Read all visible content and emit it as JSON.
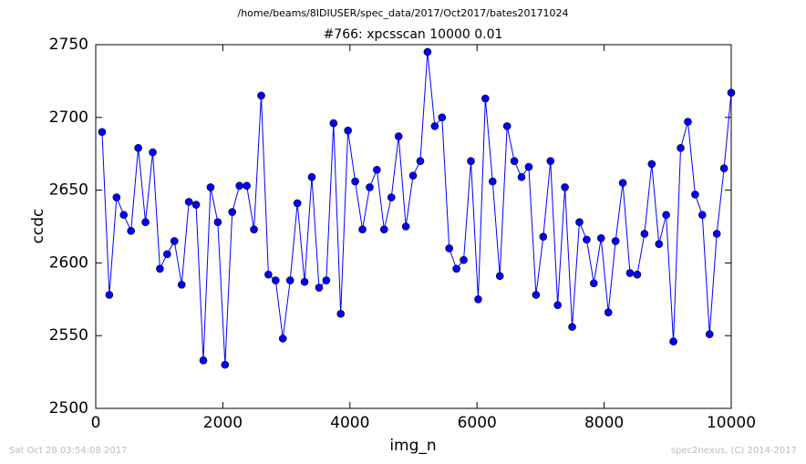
{
  "chart_data": {
    "type": "line",
    "suptitle": "/home/beams/8IDIUSER/spec_data/2017/Oct2017/bates20171024",
    "title": "#766: xpcsscan 10000 0.01",
    "xlabel": "img_n",
    "ylabel": "ccdc",
    "annotations": [
      "Sat Oct 28 03:54:08 2017",
      "spec2nexus, (C) 2014-2017"
    ],
    "color": "#0000ff",
    "marker": "circle",
    "x": [
      100,
      214,
      328,
      441,
      555,
      669,
      783,
      897,
      1010,
      1124,
      1238,
      1352,
      1466,
      1579,
      1693,
      1807,
      1921,
      2035,
      2148,
      2262,
      2376,
      2490,
      2604,
      2717,
      2831,
      2945,
      3059,
      3173,
      3286,
      3400,
      3514,
      3628,
      3742,
      3855,
      3969,
      4083,
      4197,
      4311,
      4424,
      4538,
      4652,
      4766,
      4880,
      4993,
      5107,
      5221,
      5335,
      5449,
      5562,
      5676,
      5790,
      5904,
      6018,
      6131,
      6245,
      6359,
      6473,
      6587,
      6700,
      6814,
      6928,
      7042,
      7156,
      7269,
      7383,
      7497,
      7611,
      7725,
      7838,
      7952,
      8066,
      8180,
      8294,
      8407,
      8521,
      8635,
      8749,
      8863,
      8976,
      9090,
      9204,
      9318,
      9432,
      9545,
      9659,
      9773,
      9887,
      10000
    ],
    "values": [
      2690,
      2578,
      2645,
      2633,
      2622,
      2679,
      2628,
      2676,
      2596,
      2606,
      2615,
      2585,
      2642,
      2640,
      2533,
      2652,
      2628,
      2530,
      2635,
      2653,
      2653,
      2623,
      2715,
      2592,
      2588,
      2548,
      2588,
      2641,
      2587,
      2659,
      2583,
      2588,
      2696,
      2565,
      2691,
      2656,
      2623,
      2652,
      2664,
      2623,
      2645,
      2687,
      2625,
      2660,
      2670,
      2745,
      2694,
      2700,
      2610,
      2596,
      2602,
      2670,
      2575,
      2713,
      2656,
      2591,
      2694,
      2670,
      2659,
      2666,
      2578,
      2618,
      2670,
      2571,
      2652,
      2556,
      2628,
      2616,
      2586,
      2617,
      2566,
      2615,
      2655,
      2593,
      2592,
      2620,
      2668,
      2613,
      2633,
      2546,
      2679,
      2697,
      2647,
      2633,
      2551,
      2620,
      2665,
      2717
    ],
    "xlim": [
      0,
      10000
    ],
    "xticks": [
      0,
      2000,
      4000,
      6000,
      8000,
      10000
    ],
    "ylim": [
      2500,
      2750
    ],
    "yticks": [
      2500,
      2550,
      2600,
      2650,
      2700,
      2750
    ],
    "grid": false
  }
}
